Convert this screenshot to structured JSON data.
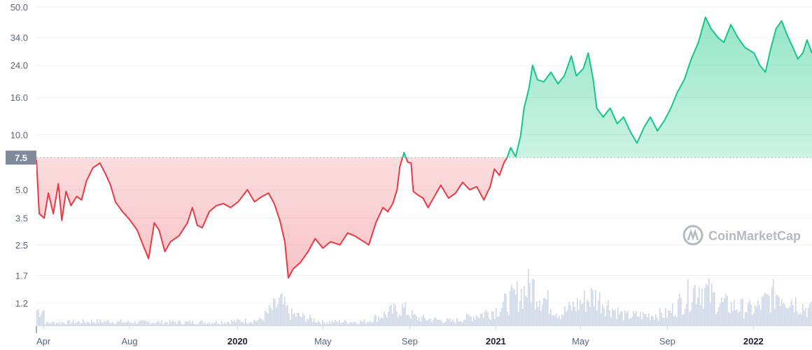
{
  "watermark": "CoinMarketCap",
  "colors": {
    "up": "#16c784",
    "down": "#ea3943",
    "volume": "#cfd6e4",
    "baseline_badge": "#808a9d",
    "grid": "#eff2f5",
    "axis_text": "#58667e"
  },
  "chart_data": {
    "type": "line",
    "title": "",
    "xlabel": "",
    "ylabel": "",
    "y_scale": "log",
    "y_ticks": [
      "50.0",
      "34.0",
      "24.0",
      "16.0",
      "10.0",
      "7.5",
      "5.0",
      "3.5",
      "2.5",
      "1.7",
      "1.2"
    ],
    "baseline": {
      "value": 7.5,
      "label": "7.5"
    },
    "x_ticks": [
      "Apr",
      "Aug",
      "2020",
      "May",
      "Sep",
      "2021",
      "May",
      "Sep",
      "2022"
    ],
    "x_ticks_year": [
      "2020",
      "2021",
      "2022"
    ],
    "x_range": [
      "2019-03-22",
      "2022-03-25"
    ],
    "series": [
      {
        "values": [
          [
            "2019-03-22",
            7.3
          ],
          [
            "2019-03-26",
            3.7
          ],
          [
            "2019-04-02",
            3.5
          ],
          [
            "2019-04-08",
            4.8
          ],
          [
            "2019-04-15",
            3.7
          ],
          [
            "2019-04-22",
            5.4
          ],
          [
            "2019-04-27",
            3.4
          ],
          [
            "2019-05-03",
            4.9
          ],
          [
            "2019-05-10",
            4.1
          ],
          [
            "2019-05-18",
            4.6
          ],
          [
            "2019-05-25",
            4.4
          ],
          [
            "2019-06-01",
            5.6
          ],
          [
            "2019-06-10",
            6.6
          ],
          [
            "2019-06-20",
            7.0
          ],
          [
            "2019-06-28",
            6.1
          ],
          [
            "2019-07-05",
            5.3
          ],
          [
            "2019-07-12",
            4.3
          ],
          [
            "2019-07-22",
            3.8
          ],
          [
            "2019-08-02",
            3.4
          ],
          [
            "2019-08-12",
            3.0
          ],
          [
            "2019-08-20",
            2.5
          ],
          [
            "2019-08-28",
            2.1
          ],
          [
            "2019-09-05",
            3.3
          ],
          [
            "2019-09-12",
            3.0
          ],
          [
            "2019-09-20",
            2.3
          ],
          [
            "2019-09-28",
            2.6
          ],
          [
            "2019-10-10",
            2.8
          ],
          [
            "2019-10-22",
            3.3
          ],
          [
            "2019-10-29",
            4.0
          ],
          [
            "2019-11-05",
            3.2
          ],
          [
            "2019-11-12",
            3.1
          ],
          [
            "2019-11-22",
            3.8
          ],
          [
            "2019-12-02",
            4.1
          ],
          [
            "2019-12-12",
            4.2
          ],
          [
            "2019-12-22",
            4.0
          ],
          [
            "2020-01-02",
            4.3
          ],
          [
            "2020-01-15",
            5.0
          ],
          [
            "2020-01-25",
            4.3
          ],
          [
            "2020-02-05",
            4.6
          ],
          [
            "2020-02-14",
            4.8
          ],
          [
            "2020-02-22",
            4.2
          ],
          [
            "2020-03-01",
            3.4
          ],
          [
            "2020-03-08",
            2.6
          ],
          [
            "2020-03-13",
            1.65
          ],
          [
            "2020-03-20",
            1.85
          ],
          [
            "2020-03-30",
            2.0
          ],
          [
            "2020-04-10",
            2.3
          ],
          [
            "2020-04-20",
            2.7
          ],
          [
            "2020-05-01",
            2.4
          ],
          [
            "2020-05-12",
            2.6
          ],
          [
            "2020-05-25",
            2.5
          ],
          [
            "2020-06-05",
            2.9
          ],
          [
            "2020-06-15",
            2.8
          ],
          [
            "2020-06-28",
            2.6
          ],
          [
            "2020-07-05",
            2.5
          ],
          [
            "2020-07-15",
            3.3
          ],
          [
            "2020-07-25",
            4.0
          ],
          [
            "2020-08-01",
            3.8
          ],
          [
            "2020-08-08",
            4.2
          ],
          [
            "2020-08-14",
            5.0
          ],
          [
            "2020-08-18",
            6.7
          ],
          [
            "2020-08-24",
            8.0
          ],
          [
            "2020-08-29",
            7.1
          ],
          [
            "2020-09-03",
            7.0
          ],
          [
            "2020-09-06",
            4.9
          ],
          [
            "2020-09-12",
            4.7
          ],
          [
            "2020-09-20",
            4.5
          ],
          [
            "2020-09-27",
            4.0
          ],
          [
            "2020-10-06",
            4.6
          ],
          [
            "2020-10-15",
            5.3
          ],
          [
            "2020-10-26",
            4.5
          ],
          [
            "2020-11-05",
            4.8
          ],
          [
            "2020-11-15",
            5.5
          ],
          [
            "2020-11-25",
            5.0
          ],
          [
            "2020-12-05",
            5.2
          ],
          [
            "2020-12-15",
            4.4
          ],
          [
            "2020-12-24",
            5.2
          ],
          [
            "2020-12-30",
            6.5
          ],
          [
            "2021-01-06",
            6.0
          ],
          [
            "2021-01-13",
            7.1
          ],
          [
            "2021-01-17",
            7.5
          ],
          [
            "2021-01-22",
            8.5
          ],
          [
            "2021-01-29",
            7.6
          ],
          [
            "2021-02-05",
            9.8
          ],
          [
            "2021-02-10",
            14.0
          ],
          [
            "2021-02-17",
            18.0
          ],
          [
            "2021-02-22",
            24.0
          ],
          [
            "2021-03-01",
            20.0
          ],
          [
            "2021-03-10",
            19.5
          ],
          [
            "2021-03-20",
            22.0
          ],
          [
            "2021-03-30",
            19.0
          ],
          [
            "2021-04-08",
            21.0
          ],
          [
            "2021-04-18",
            27.0
          ],
          [
            "2021-04-25",
            21.0
          ],
          [
            "2021-05-05",
            23.0
          ],
          [
            "2021-05-12",
            28.0
          ],
          [
            "2021-05-19",
            20.0
          ],
          [
            "2021-05-24",
            14.0
          ],
          [
            "2021-06-02",
            12.5
          ],
          [
            "2021-06-12",
            14.0
          ],
          [
            "2021-06-22",
            11.5
          ],
          [
            "2021-07-01",
            12.5
          ],
          [
            "2021-07-10",
            10.5
          ],
          [
            "2021-07-20",
            9.0
          ],
          [
            "2021-07-30",
            11.0
          ],
          [
            "2021-08-08",
            12.5
          ],
          [
            "2021-08-18",
            10.5
          ],
          [
            "2021-08-28",
            12.0
          ],
          [
            "2021-09-06",
            14.0
          ],
          [
            "2021-09-15",
            17.0
          ],
          [
            "2021-09-25",
            20.0
          ],
          [
            "2021-10-05",
            26.0
          ],
          [
            "2021-10-15",
            32.0
          ],
          [
            "2021-10-25",
            44.0
          ],
          [
            "2021-11-02",
            38.0
          ],
          [
            "2021-11-12",
            34.0
          ],
          [
            "2021-11-20",
            32.0
          ],
          [
            "2021-11-30",
            40.0
          ],
          [
            "2021-12-10",
            34.0
          ],
          [
            "2021-12-20",
            30.0
          ],
          [
            "2022-01-02",
            28.0
          ],
          [
            "2022-01-10",
            24.0
          ],
          [
            "2022-01-18",
            22.0
          ],
          [
            "2022-01-25",
            29.0
          ],
          [
            "2022-02-02",
            38.0
          ],
          [
            "2022-02-10",
            42.0
          ],
          [
            "2022-02-18",
            35.0
          ],
          [
            "2022-02-26",
            30.0
          ],
          [
            "2022-03-05",
            26.0
          ],
          [
            "2022-03-12",
            28.0
          ],
          [
            "2022-03-18",
            33.0
          ],
          [
            "2022-03-25",
            28.0
          ]
        ]
      }
    ],
    "volume": [
      [
        "2019-04-01",
        0.08
      ],
      [
        "2019-06-15",
        0.12
      ],
      [
        "2019-08-01",
        0.1
      ],
      [
        "2019-10-01",
        0.1
      ],
      [
        "2019-12-01",
        0.1
      ],
      [
        "2020-02-01",
        0.15
      ],
      [
        "2020-03-01",
        0.6
      ],
      [
        "2020-03-15",
        0.3
      ],
      [
        "2020-05-01",
        0.1
      ],
      [
        "2020-07-01",
        0.12
      ],
      [
        "2020-08-20",
        0.45
      ],
      [
        "2020-09-10",
        0.2
      ],
      [
        "2020-11-01",
        0.12
      ],
      [
        "2021-01-01",
        0.4
      ],
      [
        "2021-02-20",
        1.0
      ],
      [
        "2021-04-01",
        0.3
      ],
      [
        "2021-05-19",
        0.75
      ],
      [
        "2021-07-01",
        0.25
      ],
      [
        "2021-09-01",
        0.3
      ],
      [
        "2021-10-15",
        1.0
      ],
      [
        "2021-11-15",
        0.55
      ],
      [
        "2022-01-01",
        0.4
      ],
      [
        "2022-02-05",
        0.85
      ],
      [
        "2022-03-20",
        0.4
      ]
    ]
  }
}
